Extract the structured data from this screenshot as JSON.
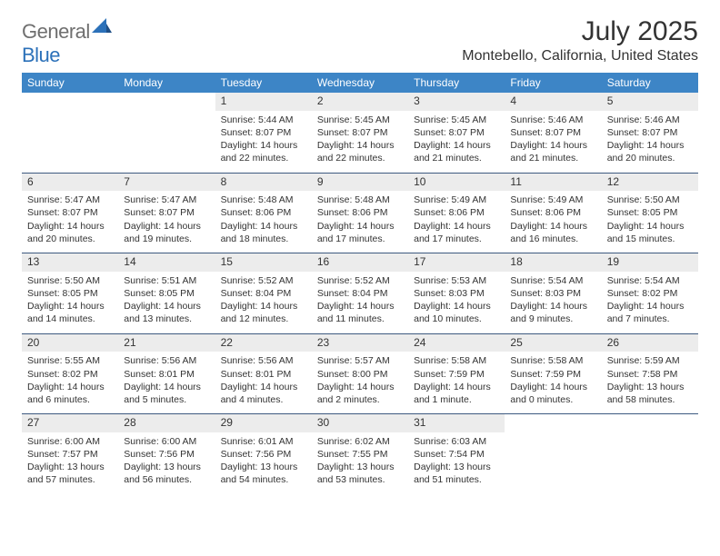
{
  "logo": {
    "word1": "General",
    "word2": "Blue"
  },
  "title": "July 2025",
  "location": "Montebello, California, United States",
  "day_headers": [
    "Sunday",
    "Monday",
    "Tuesday",
    "Wednesday",
    "Thursday",
    "Friday",
    "Saturday"
  ],
  "colors": {
    "header_bg": "#3d85c6",
    "header_text": "#ffffff",
    "daynum_bg": "#ececec",
    "text": "#333333",
    "logo_gray": "#6f6f6f",
    "logo_blue": "#2c71b9",
    "week_border": "#3d5a80"
  },
  "weeks": [
    [
      {
        "n": "",
        "sunrise": "",
        "sunset": "",
        "daylight": ""
      },
      {
        "n": "",
        "sunrise": "",
        "sunset": "",
        "daylight": ""
      },
      {
        "n": "1",
        "sunrise": "Sunrise: 5:44 AM",
        "sunset": "Sunset: 8:07 PM",
        "daylight": "Daylight: 14 hours and 22 minutes."
      },
      {
        "n": "2",
        "sunrise": "Sunrise: 5:45 AM",
        "sunset": "Sunset: 8:07 PM",
        "daylight": "Daylight: 14 hours and 22 minutes."
      },
      {
        "n": "3",
        "sunrise": "Sunrise: 5:45 AM",
        "sunset": "Sunset: 8:07 PM",
        "daylight": "Daylight: 14 hours and 21 minutes."
      },
      {
        "n": "4",
        "sunrise": "Sunrise: 5:46 AM",
        "sunset": "Sunset: 8:07 PM",
        "daylight": "Daylight: 14 hours and 21 minutes."
      },
      {
        "n": "5",
        "sunrise": "Sunrise: 5:46 AM",
        "sunset": "Sunset: 8:07 PM",
        "daylight": "Daylight: 14 hours and 20 minutes."
      }
    ],
    [
      {
        "n": "6",
        "sunrise": "Sunrise: 5:47 AM",
        "sunset": "Sunset: 8:07 PM",
        "daylight": "Daylight: 14 hours and 20 minutes."
      },
      {
        "n": "7",
        "sunrise": "Sunrise: 5:47 AM",
        "sunset": "Sunset: 8:07 PM",
        "daylight": "Daylight: 14 hours and 19 minutes."
      },
      {
        "n": "8",
        "sunrise": "Sunrise: 5:48 AM",
        "sunset": "Sunset: 8:06 PM",
        "daylight": "Daylight: 14 hours and 18 minutes."
      },
      {
        "n": "9",
        "sunrise": "Sunrise: 5:48 AM",
        "sunset": "Sunset: 8:06 PM",
        "daylight": "Daylight: 14 hours and 17 minutes."
      },
      {
        "n": "10",
        "sunrise": "Sunrise: 5:49 AM",
        "sunset": "Sunset: 8:06 PM",
        "daylight": "Daylight: 14 hours and 17 minutes."
      },
      {
        "n": "11",
        "sunrise": "Sunrise: 5:49 AM",
        "sunset": "Sunset: 8:06 PM",
        "daylight": "Daylight: 14 hours and 16 minutes."
      },
      {
        "n": "12",
        "sunrise": "Sunrise: 5:50 AM",
        "sunset": "Sunset: 8:05 PM",
        "daylight": "Daylight: 14 hours and 15 minutes."
      }
    ],
    [
      {
        "n": "13",
        "sunrise": "Sunrise: 5:50 AM",
        "sunset": "Sunset: 8:05 PM",
        "daylight": "Daylight: 14 hours and 14 minutes."
      },
      {
        "n": "14",
        "sunrise": "Sunrise: 5:51 AM",
        "sunset": "Sunset: 8:05 PM",
        "daylight": "Daylight: 14 hours and 13 minutes."
      },
      {
        "n": "15",
        "sunrise": "Sunrise: 5:52 AM",
        "sunset": "Sunset: 8:04 PM",
        "daylight": "Daylight: 14 hours and 12 minutes."
      },
      {
        "n": "16",
        "sunrise": "Sunrise: 5:52 AM",
        "sunset": "Sunset: 8:04 PM",
        "daylight": "Daylight: 14 hours and 11 minutes."
      },
      {
        "n": "17",
        "sunrise": "Sunrise: 5:53 AM",
        "sunset": "Sunset: 8:03 PM",
        "daylight": "Daylight: 14 hours and 10 minutes."
      },
      {
        "n": "18",
        "sunrise": "Sunrise: 5:54 AM",
        "sunset": "Sunset: 8:03 PM",
        "daylight": "Daylight: 14 hours and 9 minutes."
      },
      {
        "n": "19",
        "sunrise": "Sunrise: 5:54 AM",
        "sunset": "Sunset: 8:02 PM",
        "daylight": "Daylight: 14 hours and 7 minutes."
      }
    ],
    [
      {
        "n": "20",
        "sunrise": "Sunrise: 5:55 AM",
        "sunset": "Sunset: 8:02 PM",
        "daylight": "Daylight: 14 hours and 6 minutes."
      },
      {
        "n": "21",
        "sunrise": "Sunrise: 5:56 AM",
        "sunset": "Sunset: 8:01 PM",
        "daylight": "Daylight: 14 hours and 5 minutes."
      },
      {
        "n": "22",
        "sunrise": "Sunrise: 5:56 AM",
        "sunset": "Sunset: 8:01 PM",
        "daylight": "Daylight: 14 hours and 4 minutes."
      },
      {
        "n": "23",
        "sunrise": "Sunrise: 5:57 AM",
        "sunset": "Sunset: 8:00 PM",
        "daylight": "Daylight: 14 hours and 2 minutes."
      },
      {
        "n": "24",
        "sunrise": "Sunrise: 5:58 AM",
        "sunset": "Sunset: 7:59 PM",
        "daylight": "Daylight: 14 hours and 1 minute."
      },
      {
        "n": "25",
        "sunrise": "Sunrise: 5:58 AM",
        "sunset": "Sunset: 7:59 PM",
        "daylight": "Daylight: 14 hours and 0 minutes."
      },
      {
        "n": "26",
        "sunrise": "Sunrise: 5:59 AM",
        "sunset": "Sunset: 7:58 PM",
        "daylight": "Daylight: 13 hours and 58 minutes."
      }
    ],
    [
      {
        "n": "27",
        "sunrise": "Sunrise: 6:00 AM",
        "sunset": "Sunset: 7:57 PM",
        "daylight": "Daylight: 13 hours and 57 minutes."
      },
      {
        "n": "28",
        "sunrise": "Sunrise: 6:00 AM",
        "sunset": "Sunset: 7:56 PM",
        "daylight": "Daylight: 13 hours and 56 minutes."
      },
      {
        "n": "29",
        "sunrise": "Sunrise: 6:01 AM",
        "sunset": "Sunset: 7:56 PM",
        "daylight": "Daylight: 13 hours and 54 minutes."
      },
      {
        "n": "30",
        "sunrise": "Sunrise: 6:02 AM",
        "sunset": "Sunset: 7:55 PM",
        "daylight": "Daylight: 13 hours and 53 minutes."
      },
      {
        "n": "31",
        "sunrise": "Sunrise: 6:03 AM",
        "sunset": "Sunset: 7:54 PM",
        "daylight": "Daylight: 13 hours and 51 minutes."
      },
      {
        "n": "",
        "sunrise": "",
        "sunset": "",
        "daylight": ""
      },
      {
        "n": "",
        "sunrise": "",
        "sunset": "",
        "daylight": ""
      }
    ]
  ]
}
